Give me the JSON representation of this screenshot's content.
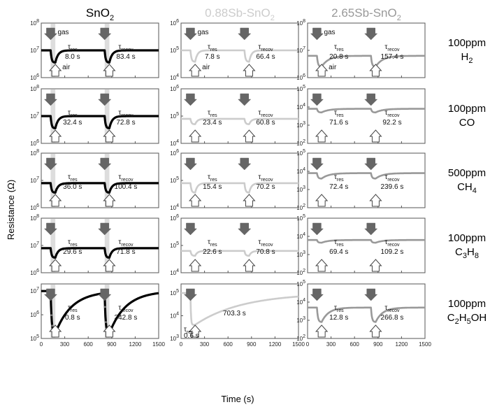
{
  "chart_data": {
    "type": "line",
    "columns": [
      {
        "title": "SnO",
        "title_sub": "2",
        "color": "#000000"
      },
      {
        "title": "0.88Sb-SnO",
        "title_sub": "2",
        "color": "#cccccc"
      },
      {
        "title": "2.65Sb-SnO",
        "title_sub": "2",
        "color": "#999999"
      }
    ],
    "rows": [
      {
        "label_line1": "100ppm",
        "label_line2": [
          {
            "t": "H"
          },
          {
            "t": "2",
            "sub": true
          }
        ]
      },
      {
        "label_line1": "100ppm",
        "label_line2": [
          {
            "t": "CO"
          }
        ]
      },
      {
        "label_line1": "500ppm",
        "label_line2": [
          {
            "t": "CH"
          },
          {
            "t": "4",
            "sub": true
          }
        ]
      },
      {
        "label_line1": "100ppm",
        "label_line2": [
          {
            "t": "C"
          },
          {
            "t": "3",
            "sub": true
          },
          {
            "t": "H"
          },
          {
            "t": "8",
            "sub": true
          }
        ]
      },
      {
        "label_line1": "100ppm",
        "label_line2": [
          {
            "t": "C"
          },
          {
            "t": "2",
            "sub": true
          },
          {
            "t": "H"
          },
          {
            "t": "5",
            "sub": true
          },
          {
            "t": "OH"
          }
        ]
      }
    ],
    "xlabel": "Time (s)",
    "ylabel": "Resistance (Ω)",
    "xticks": [
      0,
      300,
      600,
      900,
      1200,
      1500
    ],
    "xlim": [
      0,
      1500
    ],
    "y_scale": "log",
    "gas_label": "gas",
    "air_label": "air",
    "tau_symbol": "τ",
    "tau_res_sub": "res",
    "tau_recov_sub": "recov",
    "gas_on_times": [
      120,
      810
    ],
    "air_on_times": [
      180,
      870
    ],
    "panels": [
      {
        "row": 0,
        "col": 0,
        "ylim_exp": [
          6,
          8
        ],
        "tick_exps": [
          6,
          7,
          8
        ],
        "base": 7.0,
        "min": 6.55,
        "shaded": true,
        "tau_res": "8.0 s",
        "tau_recov": "83.4 s",
        "ktau_rec": 0.12
      },
      {
        "row": 0,
        "col": 1,
        "ylim_exp": [
          4,
          6
        ],
        "tick_exps": [
          4,
          5,
          6
        ],
        "base": 5.0,
        "min": 4.58,
        "tau_res": "7.8 s",
        "tau_recov": "66.4 s",
        "ktau_rec": 0.1
      },
      {
        "row": 0,
        "col": 2,
        "ylim_exp": [
          6,
          8
        ],
        "tick_exps": [
          6,
          7,
          8
        ],
        "base": 6.8,
        "min": 6.4,
        "tau_res": "20.8 s",
        "tau_recov": "157.4 s",
        "ktau_rec": 0.3
      },
      {
        "row": 1,
        "col": 0,
        "ylim_exp": [
          6,
          8
        ],
        "tick_exps": [
          6,
          7,
          8
        ],
        "base": 7.0,
        "min": 6.55,
        "shaded": true,
        "tau_res": "32.4 s",
        "tau_recov": "72.8 s",
        "ktau_rec": 0.12
      },
      {
        "row": 1,
        "col": 1,
        "ylim_exp": [
          4,
          6
        ],
        "tick_exps": [
          4,
          5,
          6
        ],
        "base": 4.9,
        "min": 4.7,
        "tau_res": "23.4 s",
        "tau_recov": "60.8 s",
        "ktau_rec": 0.1
      },
      {
        "row": 1,
        "col": 2,
        "ylim_exp": [
          2,
          5
        ],
        "tick_exps": [
          2,
          3,
          4,
          5
        ],
        "base": 3.9,
        "min": 3.7,
        "tau_res": "71.6 s",
        "tau_recov": "92.2 s",
        "ktau_rec": 0.3
      },
      {
        "row": 2,
        "col": 0,
        "ylim_exp": [
          6,
          8
        ],
        "tick_exps": [
          6,
          7,
          8
        ],
        "base": 6.9,
        "min": 6.55,
        "shaded": true,
        "tau_res": "36.0 s",
        "tau_recov": "100.4 s",
        "ktau_rec": 0.12
      },
      {
        "row": 2,
        "col": 1,
        "ylim_exp": [
          4,
          6
        ],
        "tick_exps": [
          4,
          5,
          6
        ],
        "base": 4.9,
        "min": 4.55,
        "tau_res": "15.4 s",
        "tau_recov": "70.2 s",
        "ktau_rec": 0.1
      },
      {
        "row": 2,
        "col": 2,
        "ylim_exp": [
          2,
          5
        ],
        "tick_exps": [
          2,
          3,
          4,
          5
        ],
        "base": 3.9,
        "min": 3.6,
        "tau_res": "72.4 s",
        "tau_recov": "239.6 s",
        "ktau_rec": 0.3
      },
      {
        "row": 3,
        "col": 0,
        "ylim_exp": [
          6,
          8
        ],
        "tick_exps": [
          6,
          7,
          8
        ],
        "base": 6.9,
        "min": 6.55,
        "shaded": true,
        "tau_res": "29.6 s",
        "tau_recov": "71.8 s",
        "ktau_rec": 0.12
      },
      {
        "row": 3,
        "col": 1,
        "ylim_exp": [
          4,
          6
        ],
        "tick_exps": [
          4,
          5,
          6
        ],
        "base": 4.8,
        "min": 4.62,
        "tau_res": "22.6 s",
        "tau_recov": "70.8 s",
        "ktau_rec": 0.1
      },
      {
        "row": 3,
        "col": 2,
        "ylim_exp": [
          2,
          5
        ],
        "tick_exps": [
          2,
          3,
          4,
          5
        ],
        "base": 3.8,
        "min": 3.65,
        "tau_res": "69.4 s",
        "tau_recov": "109.2 s",
        "ktau_rec": 0.3
      },
      {
        "row": 4,
        "col": 0,
        "ylim_exp": [
          5,
          7.3
        ],
        "tick_exps": [
          5,
          6,
          7
        ],
        "base": 7.0,
        "min": 5.2,
        "shaded": true,
        "tau_res": "0.8 s",
        "tau_recov": "342.8 s",
        "ktau_rec": 0.7,
        "with_markers": true
      },
      {
        "row": 4,
        "col": 1,
        "ylim_exp": [
          3,
          5.4
        ],
        "tick_exps": [
          3,
          4,
          5
        ],
        "base": 5.0,
        "min": 3.6,
        "tau_res": "0.6 s",
        "tau_recov": "703.3 s",
        "ktau_rec": 0.6,
        "single_pulse": true
      },
      {
        "row": 4,
        "col": 2,
        "ylim_exp": [
          2,
          5
        ],
        "tick_exps": [
          2,
          3,
          4,
          5
        ],
        "base": 3.7,
        "min": 2.9,
        "tau_res": "12.8 s",
        "tau_recov": "266.8 s",
        "ktau_rec": 0.3
      }
    ]
  }
}
